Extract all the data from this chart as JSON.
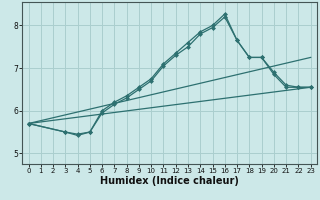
{
  "title": "",
  "xlabel": "Humidex (Indice chaleur)",
  "bg_color": "#cce8e8",
  "grid_color": "#aacece",
  "line_color": "#2d7070",
  "xlim": [
    -0.5,
    23.5
  ],
  "ylim": [
    4.75,
    8.55
  ],
  "xticks": [
    0,
    1,
    2,
    3,
    4,
    5,
    6,
    7,
    8,
    9,
    10,
    11,
    12,
    13,
    14,
    15,
    16,
    17,
    18,
    19,
    20,
    21,
    22,
    23
  ],
  "yticks": [
    5,
    6,
    7,
    8
  ],
  "line1_x": [
    0,
    3,
    4,
    5,
    6,
    7,
    8,
    9,
    10,
    11,
    12,
    13,
    14,
    15,
    16,
    17,
    18,
    19,
    20,
    21,
    22,
    23
  ],
  "line1_y": [
    5.7,
    5.5,
    5.45,
    5.5,
    5.95,
    6.15,
    6.3,
    6.5,
    6.7,
    7.05,
    7.3,
    7.5,
    7.8,
    7.95,
    8.2,
    7.65,
    7.25,
    7.25,
    6.85,
    6.55,
    6.55,
    6.55
  ],
  "line2_x": [
    0,
    3,
    4,
    5,
    6,
    7,
    8,
    9,
    10,
    11,
    12,
    13,
    14,
    15,
    16,
    17,
    18,
    19,
    20,
    21,
    22,
    23
  ],
  "line2_y": [
    5.7,
    5.5,
    5.42,
    5.5,
    6.0,
    6.2,
    6.35,
    6.55,
    6.75,
    7.1,
    7.35,
    7.6,
    7.85,
    8.0,
    8.27,
    7.65,
    7.25,
    7.25,
    6.9,
    6.6,
    6.55,
    6.55
  ],
  "line3_x": [
    0,
    23
  ],
  "line3_y": [
    5.7,
    6.55
  ],
  "line4_x": [
    0,
    23
  ],
  "line4_y": [
    5.7,
    7.25
  ],
  "marker_size": 2.5,
  "line_width": 0.9,
  "tick_fontsize": 5.5,
  "xlabel_fontsize": 7
}
